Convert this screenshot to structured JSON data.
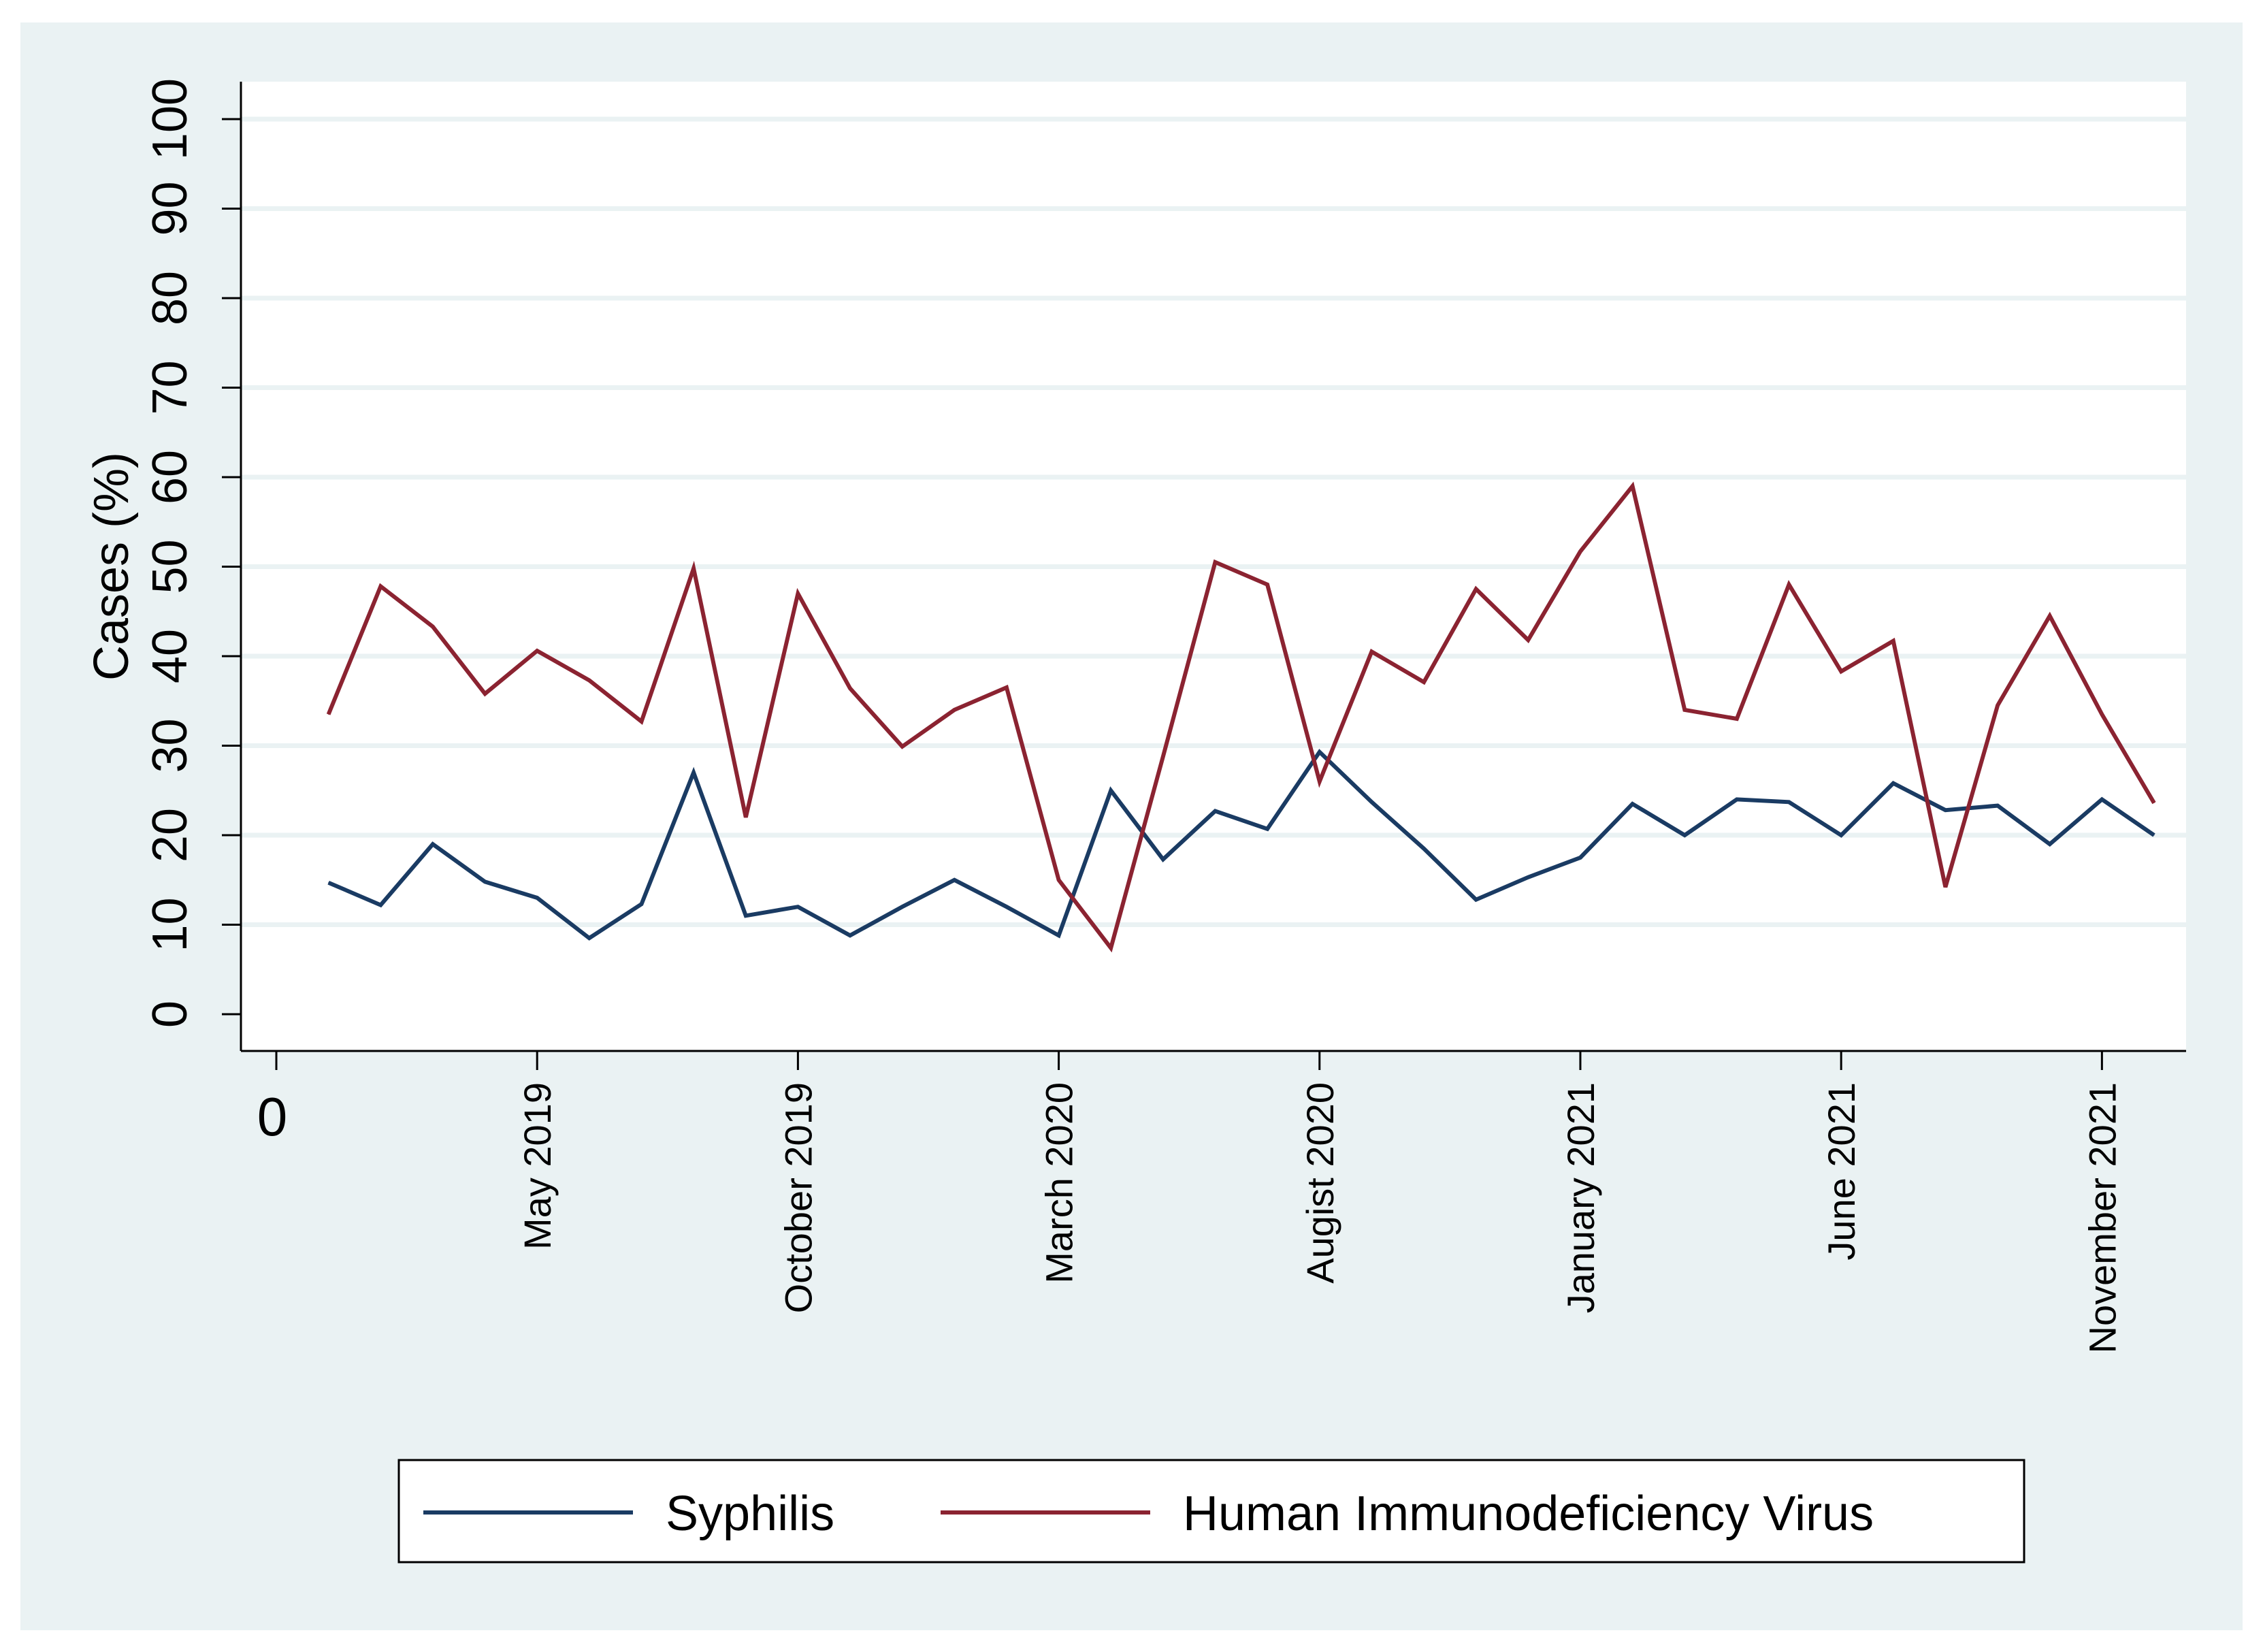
{
  "chart_data": {
    "type": "line",
    "title": "",
    "xlabel": "",
    "ylabel": "Cases (%)",
    "ylim": [
      0,
      100
    ],
    "yticks": [
      0,
      10,
      20,
      30,
      40,
      50,
      60,
      70,
      80,
      90,
      100
    ],
    "xlim": [
      0,
      36.3
    ],
    "xticks": [
      {
        "pos": 0,
        "label": "0"
      },
      {
        "pos": 5,
        "label": "May 2019"
      },
      {
        "pos": 10,
        "label": "October 2019"
      },
      {
        "pos": 15,
        "label": "March 2020"
      },
      {
        "pos": 20,
        "label": "Augist 2020"
      },
      {
        "pos": 25,
        "label": "January 2021"
      },
      {
        "pos": 30,
        "label": "June 2021"
      },
      {
        "pos": 35,
        "label": "November 2021"
      }
    ],
    "grid": true,
    "legend": "bottom",
    "x": [
      1,
      2,
      3,
      4,
      5,
      6,
      7,
      8,
      9,
      10,
      11,
      12,
      13,
      14,
      15,
      16,
      17,
      18,
      19,
      20,
      21,
      22,
      23,
      24,
      25,
      26,
      27,
      28,
      29,
      30,
      31,
      32,
      33,
      34,
      35,
      36
    ],
    "series": [
      {
        "name": "Syphilis",
        "color": "#1a3b63",
        "values": [
          14.7,
          12.2,
          19,
          14.8,
          13,
          8.5,
          12.3,
          27,
          11,
          12,
          8.8,
          12,
          15,
          12,
          8.8,
          25,
          17.3,
          22.7,
          20.7,
          29.3,
          23.7,
          18.5,
          12.8,
          15.3,
          17.5,
          23.5,
          20,
          24,
          23.7,
          20,
          25.8,
          22.8,
          23.3,
          19,
          24,
          20
        ]
      },
      {
        "name": "Human Immunodeficiency Virus",
        "color": "#8b2331",
        "values": [
          33.5,
          47.8,
          43.3,
          35.8,
          40.6,
          37.3,
          32.7,
          49.8,
          22,
          47,
          36.4,
          29.9,
          34,
          36.5,
          15,
          7.4,
          28.8,
          50.5,
          48,
          26,
          40.5,
          37.1,
          47.5,
          41.8,
          51.7,
          59,
          34,
          33,
          48,
          38.3,
          41.7,
          14.2,
          34.5,
          44.5,
          33.5,
          23.6
        ]
      }
    ]
  }
}
